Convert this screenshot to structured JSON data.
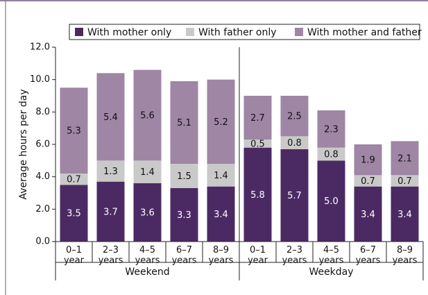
{
  "chart_data": {
    "type": "stacked_bar",
    "y_label": "Average hours per day",
    "groups": [
      "Weekend",
      "Weekday"
    ],
    "categories": [
      "0–1 year",
      "2–3 years",
      "4–5 years",
      "6–7 years",
      "8–9 years",
      "0–1 year",
      "2–3 years",
      "4–5 years",
      "6–7 years",
      "8–9 years"
    ],
    "series": [
      {
        "name": "With mother only",
        "color": "#4b2a64",
        "values": [
          3.5,
          3.7,
          3.6,
          3.3,
          3.4,
          5.8,
          5.7,
          5.0,
          3.4,
          3.4
        ],
        "value_labels": [
          "3.5",
          "3.7",
          "3.6",
          "3.3",
          "3.4",
          "5.8",
          "5.7",
          "5.0",
          "3.4",
          "3.4"
        ]
      },
      {
        "name": "With father only",
        "color": "#c9c9c9",
        "values": [
          0.7,
          1.3,
          1.4,
          1.5,
          1.4,
          0.5,
          0.8,
          0.8,
          0.7,
          0.7
        ]
      },
      {
        "name": "With mother and father",
        "color": "#9e86a4",
        "values": [
          5.3,
          5.4,
          5.6,
          5.1,
          5.2,
          2.7,
          2.5,
          2.3,
          1.9,
          2.1
        ]
      }
    ],
    "ylim": [
      0,
      12
    ],
    "yticks": [
      {
        "value": 0,
        "label": "0.0"
      },
      {
        "value": 2,
        "label": "2.0"
      },
      {
        "value": 4,
        "label": "4.0"
      },
      {
        "value": 6,
        "label": "6.0"
      },
      {
        "value": 8,
        "label": "8.0"
      },
      {
        "value": 10,
        "label": "10.0"
      },
      {
        "value": 12,
        "label": "12.0"
      }
    ],
    "legend": "top"
  }
}
